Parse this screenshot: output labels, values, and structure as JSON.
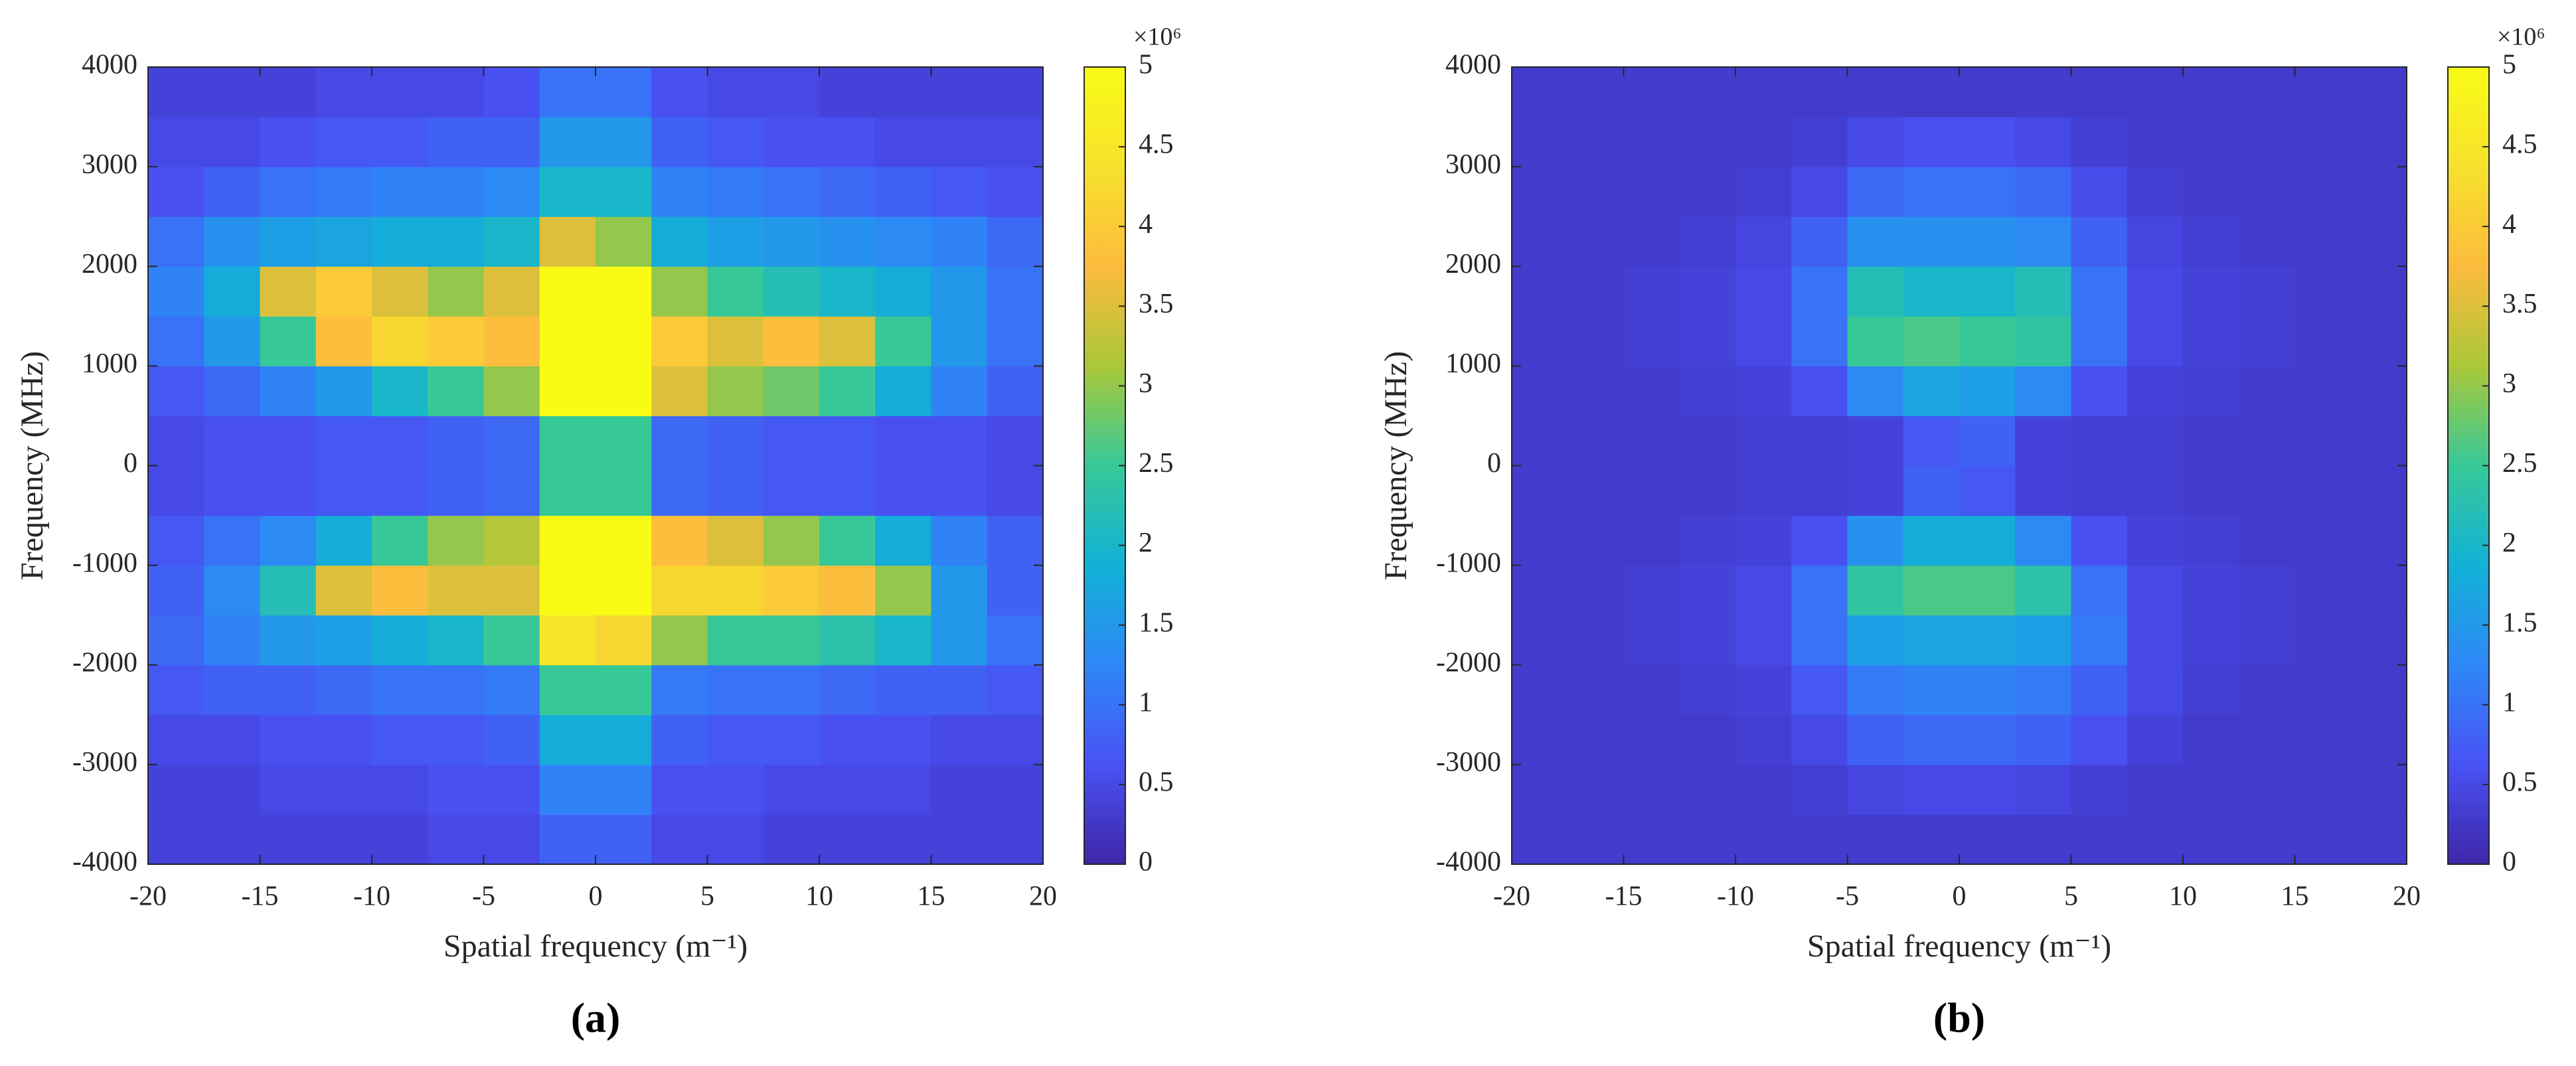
{
  "chart_data": [
    {
      "type": "heatmap",
      "panel_label": "(a)",
      "xlabel": "Spatial frequency (m⁻¹)",
      "ylabel": "Frequency (MHz)",
      "colormap": "parula",
      "clim": [
        0,
        5
      ],
      "colorbar_exponent": "×10⁶",
      "cticks": [
        0,
        0.5,
        1,
        1.5,
        2,
        2.5,
        3,
        3.5,
        4,
        4.5,
        5
      ],
      "xlim": [
        -20,
        20
      ],
      "ylim": [
        -4000,
        4000
      ],
      "xticks": [
        -20,
        -15,
        -10,
        -5,
        0,
        5,
        10,
        15,
        20
      ],
      "yticks": [
        -4000,
        -3000,
        -2000,
        -1000,
        0,
        1000,
        2000,
        3000,
        4000
      ],
      "xbins": [
        -20,
        -17.5,
        -15,
        -12.5,
        -10,
        -7.5,
        -5,
        -2.5,
        0,
        2.5,
        5,
        7.5,
        10,
        12.5,
        15,
        17.5,
        20
      ],
      "ybins": [
        -4000,
        -3500,
        -3000,
        -2500,
        -2000,
        -1500,
        -1000,
        -500,
        0,
        500,
        1000,
        1500,
        2000,
        2500,
        3000,
        3500,
        4000
      ],
      "z": [
        [
          0.4,
          0.4,
          0.4,
          0.4,
          0.4,
          0.5,
          0.5,
          0.8,
          0.8,
          0.5,
          0.5,
          0.4,
          0.4,
          0.4,
          0.4,
          0.4
        ],
        [
          0.4,
          0.4,
          0.5,
          0.5,
          0.5,
          0.6,
          0.6,
          1.2,
          1.2,
          0.6,
          0.6,
          0.5,
          0.5,
          0.5,
          0.4,
          0.4
        ],
        [
          0.5,
          0.5,
          0.6,
          0.6,
          0.7,
          0.7,
          0.8,
          1.8,
          1.8,
          0.8,
          0.7,
          0.7,
          0.6,
          0.6,
          0.5,
          0.5
        ],
        [
          0.7,
          0.8,
          0.8,
          0.9,
          1,
          1,
          1.1,
          2.5,
          2.5,
          1.1,
          1,
          1,
          0.9,
          0.8,
          0.8,
          0.7
        ],
        [
          0.9,
          1.2,
          1.5,
          1.6,
          1.8,
          2,
          2.5,
          4.5,
          4.2,
          3,
          2.5,
          2.5,
          2.3,
          2,
          1.5,
          1
        ],
        [
          0.8,
          1.3,
          2.2,
          3.5,
          3.8,
          3.5,
          3.5,
          5,
          5,
          4.2,
          4.2,
          4,
          3.8,
          3,
          1.5,
          0.8
        ],
        [
          0.7,
          1,
          1.3,
          1.8,
          2.5,
          3,
          3.2,
          5,
          5,
          3.8,
          3.5,
          3,
          2.5,
          1.8,
          1.2,
          0.8
        ],
        [
          0.5,
          0.6,
          0.6,
          0.7,
          0.7,
          0.8,
          0.9,
          2.5,
          2.5,
          0.9,
          0.8,
          0.7,
          0.7,
          0.6,
          0.6,
          0.5
        ],
        [
          0.5,
          0.6,
          0.6,
          0.7,
          0.7,
          0.8,
          0.9,
          2.5,
          2.5,
          0.9,
          0.8,
          0.7,
          0.7,
          0.6,
          0.6,
          0.5
        ],
        [
          0.7,
          0.9,
          1.2,
          1.5,
          2,
          2.5,
          3,
          5,
          5,
          3.5,
          3,
          2.8,
          2.5,
          1.8,
          1.2,
          0.8
        ],
        [
          1,
          1.5,
          2.5,
          3.8,
          4.2,
          4,
          3.8,
          5,
          5,
          4,
          3.5,
          3.8,
          3.5,
          2.5,
          1.5,
          1
        ],
        [
          1.2,
          1.8,
          3.5,
          4,
          3.5,
          3,
          3.5,
          5,
          5,
          3,
          2.5,
          2.2,
          2,
          1.8,
          1.5,
          1
        ],
        [
          1,
          1.4,
          1.6,
          1.7,
          1.8,
          1.8,
          2,
          3.5,
          3,
          1.8,
          1.6,
          1.5,
          1.4,
          1.3,
          1.2,
          0.9
        ],
        [
          0.6,
          0.8,
          1,
          1.1,
          1.2,
          1.2,
          1.3,
          2,
          2,
          1.2,
          1.1,
          1,
          0.9,
          0.8,
          0.7,
          0.6
        ],
        [
          0.5,
          0.5,
          0.6,
          0.7,
          0.7,
          0.8,
          0.8,
          1.5,
          1.5,
          0.8,
          0.7,
          0.6,
          0.6,
          0.5,
          0.5,
          0.5
        ],
        [
          0.4,
          0.4,
          0.4,
          0.5,
          0.5,
          0.5,
          0.6,
          1,
          1,
          0.6,
          0.5,
          0.5,
          0.4,
          0.4,
          0.4,
          0.4
        ]
      ]
    },
    {
      "type": "heatmap",
      "panel_label": "(b)",
      "xlabel": "Spatial frequency (m⁻¹)",
      "ylabel": "Frequency (MHz)",
      "colormap": "parula",
      "clim": [
        0,
        5
      ],
      "colorbar_exponent": "×10⁶",
      "cticks": [
        0,
        0.5,
        1,
        1.5,
        2,
        2.5,
        3,
        3.5,
        4,
        4.5,
        5
      ],
      "xlim": [
        -20,
        20
      ],
      "ylim": [
        -4000,
        4000
      ],
      "xticks": [
        -20,
        -15,
        -10,
        -5,
        0,
        5,
        10,
        15,
        20
      ],
      "yticks": [
        -4000,
        -3000,
        -2000,
        -1000,
        0,
        1000,
        2000,
        3000,
        4000
      ],
      "xbins": [
        -20,
        -17.5,
        -15,
        -12.5,
        -10,
        -7.5,
        -5,
        -2.5,
        0,
        2.5,
        5,
        7.5,
        10,
        12.5,
        15,
        17.5,
        20
      ],
      "ybins": [
        -4000,
        -3500,
        -3000,
        -2500,
        -2000,
        -1500,
        -1000,
        -500,
        0,
        500,
        1000,
        1500,
        2000,
        2500,
        3000,
        3500,
        4000
      ],
      "z": [
        [
          0.3,
          0.3,
          0.3,
          0.3,
          0.3,
          0.3,
          0.3,
          0.3,
          0.3,
          0.3,
          0.3,
          0.3,
          0.3,
          0.3,
          0.3,
          0.3
        ],
        [
          0.3,
          0.3,
          0.3,
          0.3,
          0.3,
          0.35,
          0.45,
          0.5,
          0.5,
          0.45,
          0.35,
          0.3,
          0.3,
          0.3,
          0.3,
          0.3
        ],
        [
          0.3,
          0.3,
          0.3,
          0.3,
          0.35,
          0.5,
          0.8,
          0.9,
          0.9,
          0.8,
          0.6,
          0.4,
          0.3,
          0.3,
          0.3,
          0.3
        ],
        [
          0.3,
          0.3,
          0.3,
          0.35,
          0.4,
          0.7,
          1.1,
          1.2,
          1.2,
          1.1,
          0.8,
          0.5,
          0.35,
          0.3,
          0.3,
          0.3
        ],
        [
          0.3,
          0.3,
          0.35,
          0.4,
          0.5,
          1,
          1.6,
          1.7,
          1.7,
          1.6,
          1.1,
          0.5,
          0.4,
          0.35,
          0.3,
          0.3
        ],
        [
          0.3,
          0.3,
          0.35,
          0.4,
          0.5,
          1,
          2.4,
          2.6,
          2.6,
          2.3,
          1,
          0.5,
          0.4,
          0.35,
          0.3,
          0.3
        ],
        [
          0.3,
          0.3,
          0.3,
          0.35,
          0.4,
          0.6,
          1.4,
          1.8,
          1.8,
          1.3,
          0.6,
          0.4,
          0.35,
          0.3,
          0.3,
          0.3
        ],
        [
          0.3,
          0.3,
          0.3,
          0.3,
          0.35,
          0.35,
          0.4,
          0.8,
          0.7,
          0.4,
          0.35,
          0.35,
          0.3,
          0.3,
          0.3,
          0.3
        ],
        [
          0.3,
          0.3,
          0.3,
          0.3,
          0.35,
          0.35,
          0.4,
          0.7,
          0.8,
          0.4,
          0.35,
          0.35,
          0.3,
          0.3,
          0.3,
          0.3
        ],
        [
          0.3,
          0.3,
          0.3,
          0.35,
          0.4,
          0.6,
          1.3,
          1.7,
          1.6,
          1.3,
          0.6,
          0.4,
          0.35,
          0.3,
          0.3,
          0.3
        ],
        [
          0.3,
          0.3,
          0.35,
          0.4,
          0.5,
          1,
          2.5,
          2.6,
          2.5,
          2.4,
          1,
          0.5,
          0.4,
          0.35,
          0.3,
          0.3
        ],
        [
          0.3,
          0.3,
          0.35,
          0.4,
          0.5,
          1,
          2.2,
          2,
          2,
          2.2,
          1,
          0.5,
          0.4,
          0.35,
          0.3,
          0.3
        ],
        [
          0.3,
          0.3,
          0.3,
          0.35,
          0.45,
          0.8,
          1.4,
          1.4,
          1.4,
          1.3,
          0.8,
          0.45,
          0.35,
          0.3,
          0.3,
          0.3
        ],
        [
          0.3,
          0.3,
          0.3,
          0.3,
          0.35,
          0.5,
          0.9,
          1,
          1,
          0.9,
          0.55,
          0.35,
          0.3,
          0.3,
          0.3,
          0.3
        ],
        [
          0.3,
          0.3,
          0.3,
          0.3,
          0.3,
          0.35,
          0.5,
          0.6,
          0.6,
          0.5,
          0.35,
          0.3,
          0.3,
          0.3,
          0.3,
          0.3
        ],
        [
          0.3,
          0.3,
          0.3,
          0.3,
          0.3,
          0.3,
          0.3,
          0.3,
          0.3,
          0.3,
          0.3,
          0.3,
          0.3,
          0.3,
          0.3,
          0.3
        ]
      ]
    }
  ]
}
